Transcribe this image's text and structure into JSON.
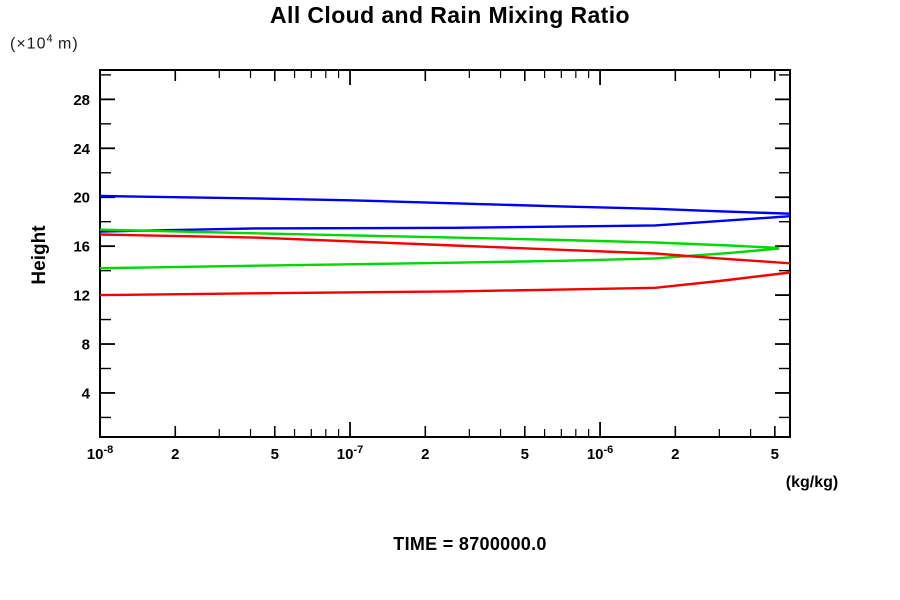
{
  "page": {
    "title": "All Cloud and Rain Mixing Ratio",
    "y_unit": {
      "pre": "(×10",
      "exp": "4",
      "post": " m)"
    },
    "y_axis_label": "Height",
    "x_unit_label": "(kg/kg)",
    "time_label": "TIME = 8700000.0"
  },
  "colors": {
    "axis": "#000000",
    "blue": "#0000f0",
    "green": "#00d800",
    "red": "#f50000"
  },
  "chart_data": {
    "type": "line",
    "title": "All Cloud and Rain Mixing Ratio",
    "xlabel": "(kg/kg)",
    "ylabel": "Height (x10^4 m)",
    "annotation": "TIME = 8700000.0",
    "x_scale": "log",
    "grid": false,
    "legend": "none",
    "xlim": [
      1e-08,
      5.75e-06
    ],
    "ylim": [
      0.4,
      30.4
    ],
    "y_major_ticks": [
      4,
      8,
      12,
      16,
      20,
      24,
      28
    ],
    "y_minor_ticks": [
      2,
      6,
      10,
      14,
      18,
      22,
      26,
      30
    ],
    "x_major_ticks": [
      {
        "value": 1e-08,
        "base": "10",
        "exp": "-8"
      },
      {
        "value": 1e-07,
        "base": "10",
        "exp": "-7"
      },
      {
        "value": 1e-06,
        "base": "10",
        "exp": "-6"
      }
    ],
    "x_sub_ticks": [
      {
        "value": 2e-08,
        "label": "2"
      },
      {
        "value": 5e-08,
        "label": "5"
      },
      {
        "value": 2e-07,
        "label": "2"
      },
      {
        "value": 5e-07,
        "label": "5"
      },
      {
        "value": 2e-06,
        "label": "2"
      },
      {
        "value": 5e-06,
        "label": "5"
      }
    ],
    "x_minor_ticks": [
      3e-08,
      4e-08,
      6e-08,
      7e-08,
      8e-08,
      9e-08,
      3e-07,
      4e-07,
      6e-07,
      7e-07,
      8e-07,
      9e-07,
      3e-06,
      4e-06
    ],
    "series": [
      {
        "name": "blue-upper-boundary",
        "color_key": "blue",
        "points": [
          [
            1e-08,
            20.1
          ],
          [
            4.2e-08,
            19.9
          ],
          [
            1e-07,
            19.75
          ],
          [
            2.6e-07,
            19.5
          ],
          [
            7e-07,
            19.25
          ],
          [
            1.66e-06,
            19.05
          ],
          [
            3e-06,
            18.85
          ],
          [
            5.75e-06,
            18.65
          ]
        ]
      },
      {
        "name": "blue-lower-boundary",
        "color_key": "blue",
        "points": [
          [
            1e-08,
            17.2
          ],
          [
            4.2e-08,
            17.45
          ],
          [
            2.6e-07,
            17.5
          ],
          [
            7e-07,
            17.6
          ],
          [
            1.66e-06,
            17.7
          ],
          [
            3e-06,
            18.05
          ],
          [
            5.75e-06,
            18.45
          ]
        ]
      },
      {
        "name": "green-upper-boundary",
        "color_key": "green",
        "points": [
          [
            1e-08,
            17.35
          ],
          [
            4.2e-08,
            17.05
          ],
          [
            2.6e-07,
            16.7
          ],
          [
            7e-07,
            16.5
          ],
          [
            1.66e-06,
            16.3
          ],
          [
            3.3e-06,
            16.05
          ],
          [
            5.2e-06,
            15.85
          ]
        ]
      },
      {
        "name": "green-lower-boundary",
        "color_key": "green",
        "points": [
          [
            1e-08,
            14.2
          ],
          [
            4.2e-08,
            14.4
          ],
          [
            2.6e-07,
            14.65
          ],
          [
            7e-07,
            14.8
          ],
          [
            1.66e-06,
            15.0
          ],
          [
            3.3e-06,
            15.45
          ],
          [
            5.2e-06,
            15.8
          ]
        ]
      },
      {
        "name": "red-upper-boundary",
        "color_key": "red",
        "points": [
          [
            1e-08,
            16.95
          ],
          [
            4.2e-08,
            16.7
          ],
          [
            2.6e-07,
            16.05
          ],
          [
            7e-07,
            15.7
          ],
          [
            1.66e-06,
            15.4
          ],
          [
            3e-06,
            15.0
          ],
          [
            5.75e-06,
            14.6
          ]
        ]
      },
      {
        "name": "red-lower-boundary",
        "color_key": "red",
        "points": [
          [
            1e-08,
            12.0
          ],
          [
            4.2e-08,
            12.15
          ],
          [
            2.6e-07,
            12.3
          ],
          [
            7e-07,
            12.45
          ],
          [
            1.66e-06,
            12.6
          ],
          [
            3e-06,
            13.15
          ],
          [
            5.75e-06,
            13.85
          ]
        ]
      }
    ]
  }
}
